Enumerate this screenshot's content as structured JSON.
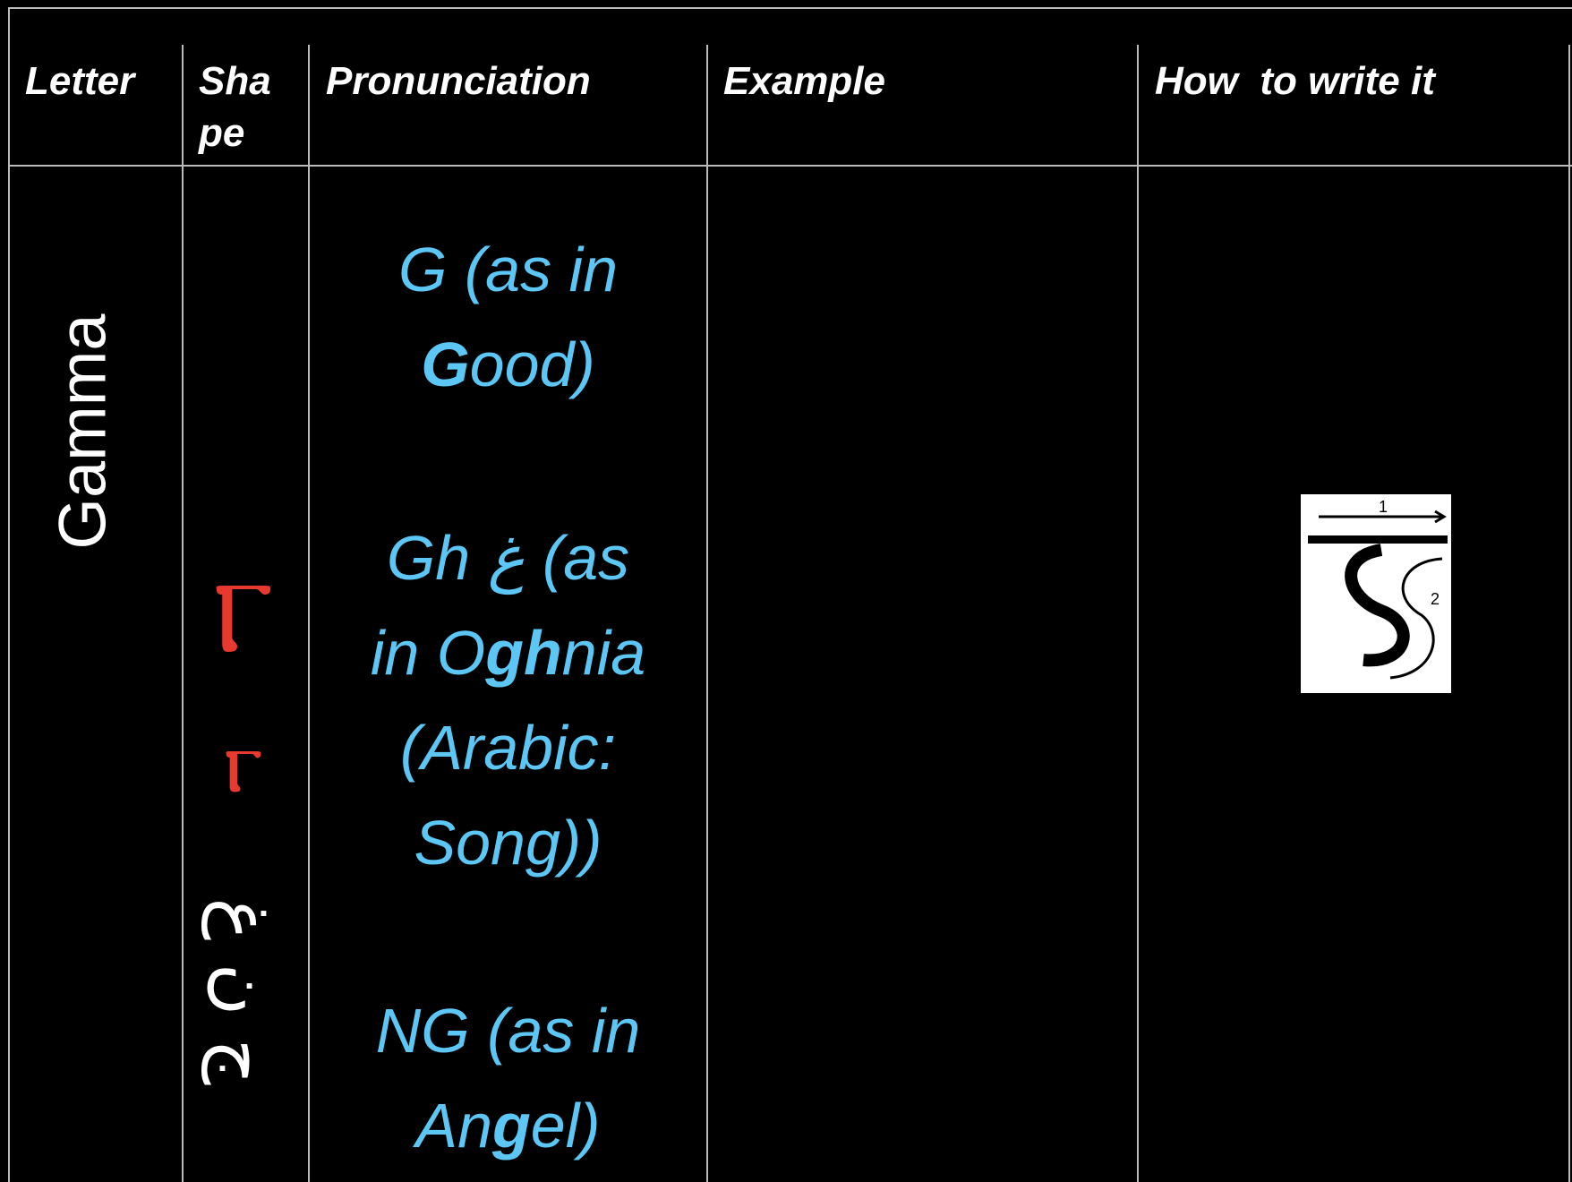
{
  "header": {
    "columns": [
      "Letter",
      "Sha pe",
      "Pronunciation",
      "Example",
      "How  to write it"
    ]
  },
  "row": {
    "letter": "Gamma",
    "shapes": [
      "Ⲅ",
      "ⲅ"
    ],
    "arabic_shapes": "ج ن غ",
    "pronunciation": [
      {
        "lines": [
          [
            "G (as in"
          ],
          [
            "",
            "G",
            "ood)"
          ]
        ]
      },
      {
        "lines": [
          [
            "Gh غ  (as"
          ],
          [
            "in O",
            "gh",
            "nia"
          ],
          [
            "(Arabic:"
          ],
          [
            "Song))"
          ]
        ]
      },
      {
        "lines": [
          [
            "NG (as in"
          ],
          [
            "An",
            "g",
            "el)"
          ]
        ]
      }
    ]
  }
}
